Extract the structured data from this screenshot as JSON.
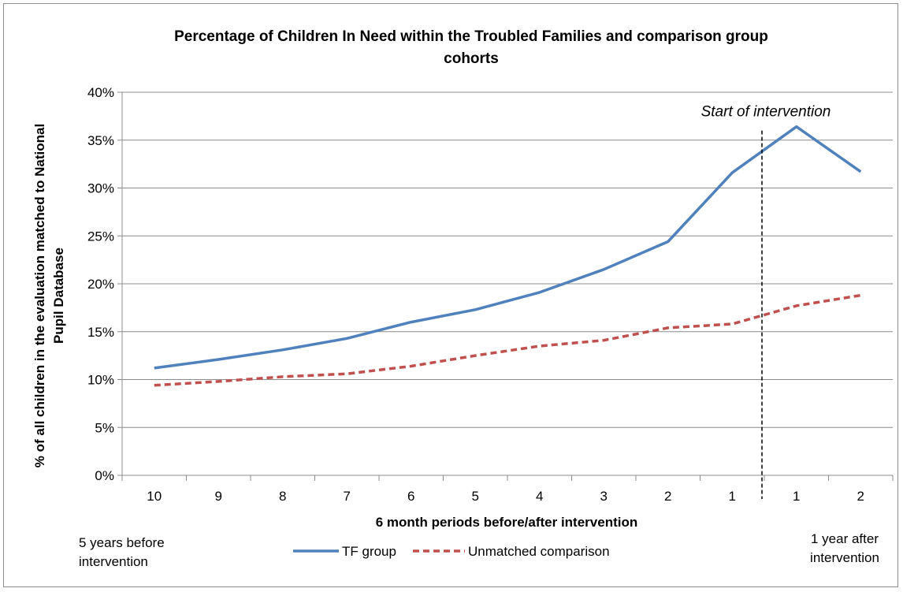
{
  "chart_data": {
    "type": "line",
    "title_line1": "Percentage of Children In Need within the Troubled Families and comparison group",
    "title_line2": "cohorts",
    "ylabel_line1": "% of all children in the evaluation matched to National",
    "ylabel_line2": "Pupil Database",
    "xlabel": "6 month periods before/after intervention",
    "categories": [
      "10",
      "9",
      "8",
      "7",
      "6",
      "5",
      "4",
      "3",
      "2",
      "1",
      "1",
      "2"
    ],
    "ylim": [
      0,
      40
    ],
    "yticks": [
      "0%",
      "5%",
      "10%",
      "15%",
      "20%",
      "25%",
      "30%",
      "35%",
      "40%"
    ],
    "grid": true,
    "legend_position": "bottom",
    "series": [
      {
        "name": "TF group",
        "color": "#4f81bd",
        "dash": "solid",
        "values": [
          11.2,
          12.1,
          13.1,
          14.3,
          16.0,
          17.3,
          19.1,
          21.5,
          24.4,
          31.6,
          36.4,
          31.7
        ]
      },
      {
        "name": "Unmatched comparison",
        "color": "#c0504d",
        "dash": "dashed",
        "values": [
          9.4,
          9.8,
          10.3,
          10.6,
          11.4,
          12.5,
          13.5,
          14.1,
          15.4,
          15.8,
          17.7,
          18.8
        ]
      }
    ],
    "annotation": {
      "text": "Start of intervention",
      "after_index": 9.5
    },
    "left_note_line1": "5 years before",
    "left_note_line2": "intervention",
    "right_note_line1": "1 year after",
    "right_note_line2": "intervention"
  }
}
